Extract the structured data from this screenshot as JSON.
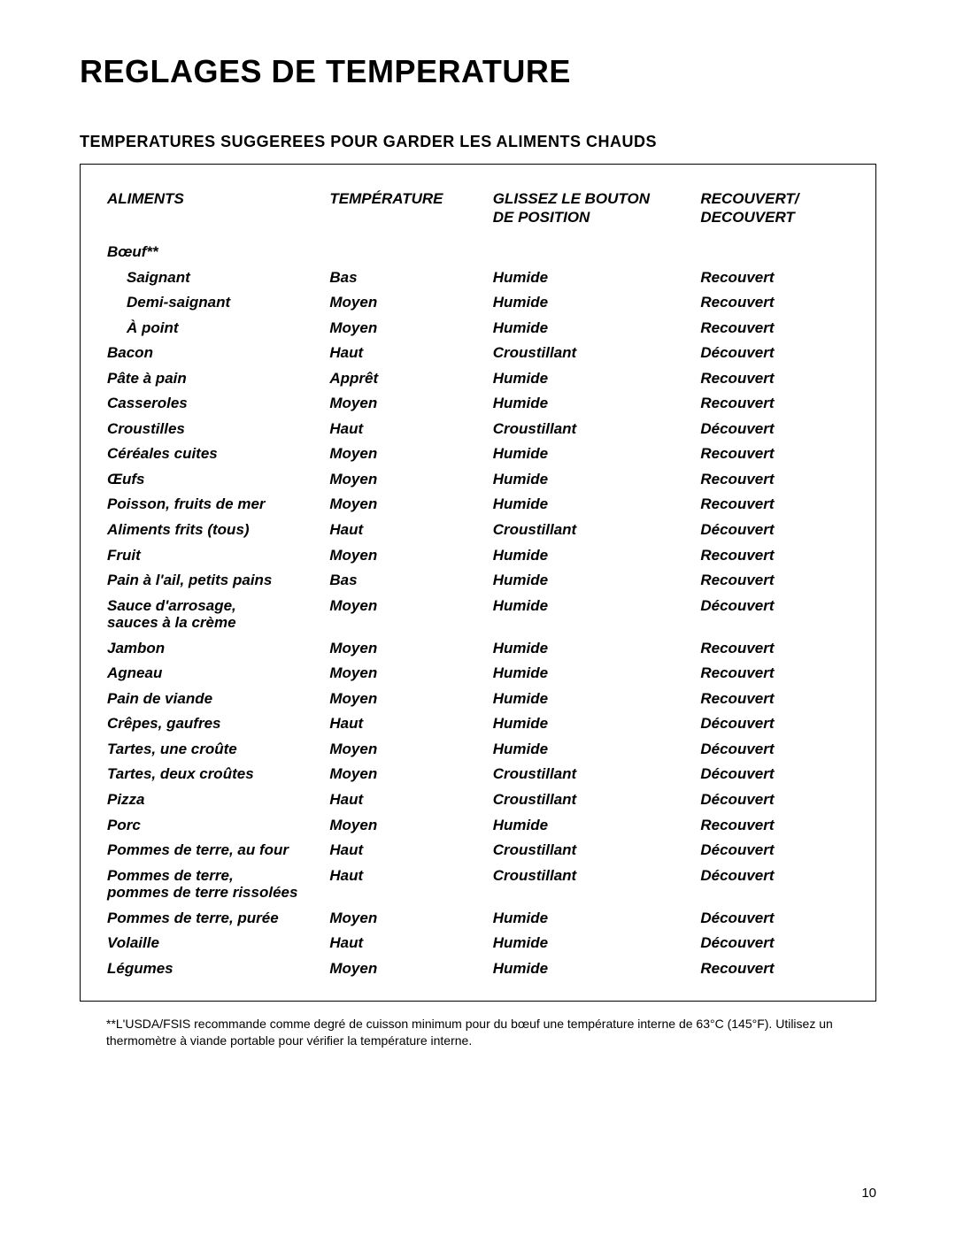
{
  "title": "Reglages de Temperature",
  "subtitle": "Temperatures Suggerees Pour Garder Les Aliments Chauds",
  "columns": {
    "c1": "Aliments",
    "c2": "Température",
    "c3_line1": "Glissez Le Bouton",
    "c3_line2": "De Position",
    "c4_line1": "Recouvert/",
    "c4_line2": "Decouvert"
  },
  "categoryRow": {
    "name": "Bœuf**"
  },
  "rows": [
    {
      "indent": true,
      "c1": "Saignant",
      "c2": "Bas",
      "c3": "Humide",
      "c4": "Recouvert"
    },
    {
      "indent": true,
      "c1": "Demi-saignant",
      "c2": "Moyen",
      "c3": "Humide",
      "c4": "Recouvert"
    },
    {
      "indent": true,
      "c1": "À point",
      "c2": "Moyen",
      "c3": "Humide",
      "c4": "Recouvert"
    },
    {
      "indent": false,
      "c1": "Bacon",
      "c2": "Haut",
      "c3": "Croustillant",
      "c4": "Découvert"
    },
    {
      "indent": false,
      "c1": "Pâte à pain",
      "c2": "Apprêt",
      "c3": "Humide",
      "c4": "Recouvert"
    },
    {
      "indent": false,
      "c1": "Casseroles",
      "c2": "Moyen",
      "c3": "Humide",
      "c4": "Recouvert"
    },
    {
      "indent": false,
      "c1": "Croustilles",
      "c2": "Haut",
      "c3": "Croustillant",
      "c4": "Découvert"
    },
    {
      "indent": false,
      "c1": "Céréales cuites",
      "c2": "Moyen",
      "c3": "Humide",
      "c4": "Recouvert"
    },
    {
      "indent": false,
      "c1": "Œufs",
      "c2": "Moyen",
      "c3": "Humide",
      "c4": "Recouvert"
    },
    {
      "indent": false,
      "c1": "Poisson, fruits de mer",
      "c2": "Moyen",
      "c3": "Humide",
      "c4": "Recouvert"
    },
    {
      "indent": false,
      "c1": "Aliments frits (tous)",
      "c2": "Haut",
      "c3": "Croustillant",
      "c4": "Découvert"
    },
    {
      "indent": false,
      "c1": "Fruit",
      "c2": "Moyen",
      "c3": "Humide",
      "c4": "Recouvert"
    },
    {
      "indent": false,
      "c1": "Pain à l'ail,  petits pains",
      "c2": "Bas",
      "c3": "Humide",
      "c4": "Recouvert"
    },
    {
      "indent": false,
      "c1": "Sauce d'arrosage,\nsauces à la crème",
      "c2": "Moyen",
      "c3": "Humide",
      "c4": "Découvert"
    },
    {
      "indent": false,
      "c1": "Jambon",
      "c2": "Moyen",
      "c3": "Humide",
      "c4": "Recouvert"
    },
    {
      "indent": false,
      "c1": "Agneau",
      "c2": "Moyen",
      "c3": "Humide",
      "c4": "Recouvert"
    },
    {
      "indent": false,
      "c1": "Pain de viande",
      "c2": "Moyen",
      "c3": "Humide",
      "c4": "Recouvert"
    },
    {
      "indent": false,
      "c1": "Crêpes, gaufres",
      "c2": "Haut",
      "c3": "Humide",
      "c4": "Découvert"
    },
    {
      "indent": false,
      "c1": "Tartes, une croûte",
      "c2": "Moyen",
      "c3": "Humide",
      "c4": "Découvert"
    },
    {
      "indent": false,
      "c1": "Tartes, deux croûtes",
      "c2": "Moyen",
      "c3": "Croustillant",
      "c4": "Découvert"
    },
    {
      "indent": false,
      "c1": "Pizza",
      "c2": "Haut",
      "c3": "Croustillant",
      "c4": "Découvert"
    },
    {
      "indent": false,
      "c1": "Porc",
      "c2": "Moyen",
      "c3": "Humide",
      "c4": "Recouvert"
    },
    {
      "indent": false,
      "c1": "Pommes de terre, au four",
      "c2": "Haut",
      "c3": "Croustillant",
      "c4": "Découvert"
    },
    {
      "indent": false,
      "c1": "Pommes de terre,\npommes de terre rissolées",
      "c2": "Haut",
      "c3": "Croustillant",
      "c4": "Découvert"
    },
    {
      "indent": false,
      "c1": "Pommes de terre, purée",
      "c2": "Moyen",
      "c3": "Humide",
      "c4": "Découvert"
    },
    {
      "indent": false,
      "c1": "Volaille",
      "c2": "Haut",
      "c3": "Humide",
      "c4": "Découvert"
    },
    {
      "indent": false,
      "c1": "Légumes",
      "c2": "Moyen",
      "c3": "Humide",
      "c4": "Recouvert"
    }
  ],
  "footnote": "**L'USDA/FSIS recommande comme degré de cuisson minimum pour du bœuf une température interne de 63°C (145°F). Utilisez un thermomètre à viande portable pour vérifier la température interne.",
  "pageNumber": "10"
}
